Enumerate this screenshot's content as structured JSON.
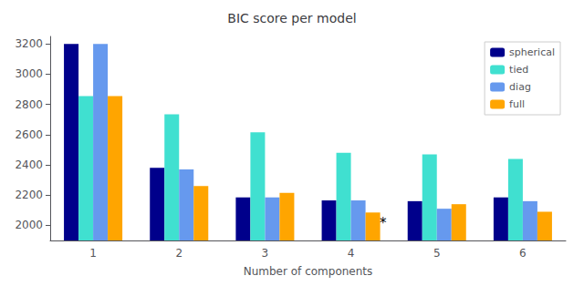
{
  "chart_data": {
    "type": "bar",
    "title": "BIC score per model",
    "xlabel": "Number of components",
    "categories": [
      1,
      2,
      3,
      4,
      5,
      6
    ],
    "series": [
      {
        "name": "spherical",
        "color": "#00008B",
        "values": [
          3200,
          2380,
          2185,
          2165,
          2160,
          2185
        ]
      },
      {
        "name": "tied",
        "color": "#40E0D0",
        "values": [
          2855,
          2735,
          2615,
          2480,
          2470,
          2440
        ]
      },
      {
        "name": "diag",
        "color": "#6699EE",
        "values": [
          3200,
          2370,
          2185,
          2165,
          2110,
          2160
        ]
      },
      {
        "name": "full",
        "color": "#FFA500",
        "values": [
          2855,
          2260,
          2215,
          2085,
          2140,
          2090
        ]
      }
    ],
    "ylim": [
      1900,
      3250
    ],
    "yticks": [
      2000,
      2200,
      2400,
      2600,
      2800,
      3000,
      3200
    ],
    "grid": false,
    "legend": "upper right",
    "annotations": [
      {
        "text": "*",
        "category": 4
      }
    ]
  }
}
